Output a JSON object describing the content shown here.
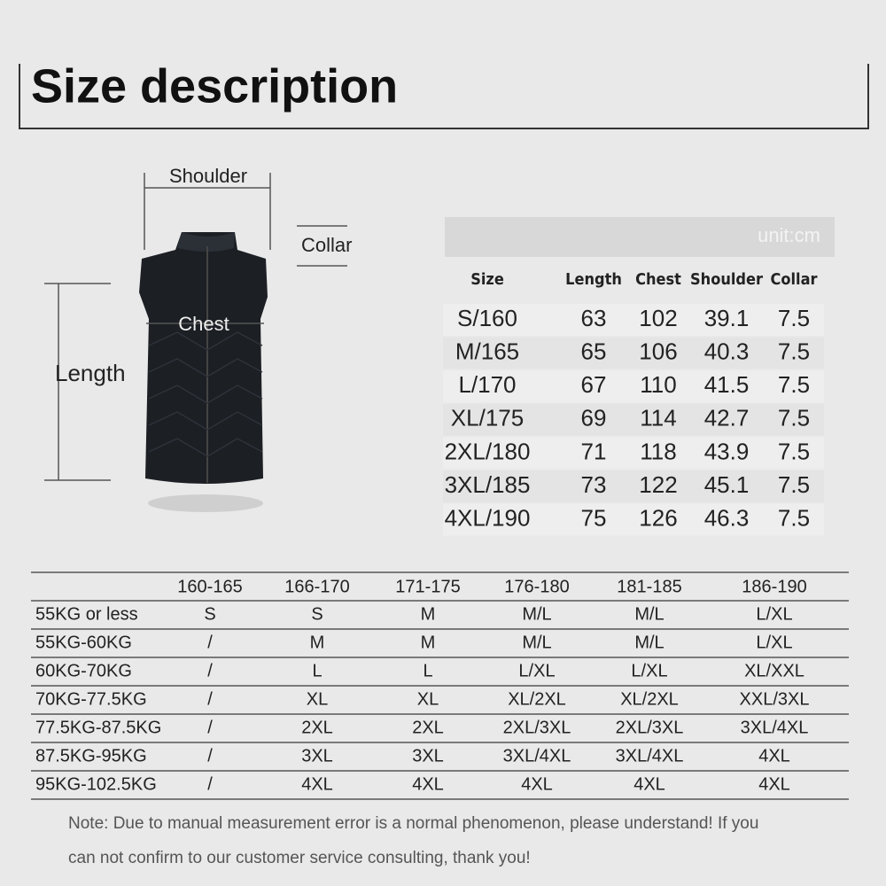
{
  "header": {
    "title": "Size description"
  },
  "diagram": {
    "shoulder": "Shoulder",
    "collar": "Collar",
    "chest": "Chest",
    "length": "Length"
  },
  "size_table": {
    "unit": "unit:cm",
    "columns": [
      "Size",
      "Length",
      "Chest",
      "Shoulder",
      "Collar"
    ],
    "rows": [
      [
        "S/160",
        63,
        102,
        39.1,
        7.5
      ],
      [
        "M/165",
        65,
        106,
        40.3,
        7.5
      ],
      [
        "L/170",
        67,
        110,
        41.5,
        7.5
      ],
      [
        "XL/175",
        69,
        114,
        42.7,
        7.5
      ],
      [
        "2XL/180",
        71,
        118,
        43.9,
        7.5
      ],
      [
        "3XL/185",
        73,
        122,
        45.1,
        7.5
      ],
      [
        "4XL/190",
        75,
        126,
        46.3,
        7.5
      ]
    ]
  },
  "fit_table": {
    "columns": [
      "160-165",
      "166-170",
      "171-175",
      "176-180",
      "181-185",
      "186-190"
    ],
    "rows": [
      {
        "weight": "55KG or less",
        "cells": [
          "S",
          "S",
          "M",
          "M/L",
          "M/L",
          "L/XL"
        ]
      },
      {
        "weight": "55KG-60KG",
        "cells": [
          "/",
          "M",
          "M",
          "M/L",
          "M/L",
          "L/XL"
        ]
      },
      {
        "weight": "60KG-70KG",
        "cells": [
          "/",
          "L",
          "L",
          "L/XL",
          "L/XL",
          "XL/XXL"
        ]
      },
      {
        "weight": "70KG-77.5KG",
        "cells": [
          "/",
          "XL",
          "XL",
          "XL/2XL",
          "XL/2XL",
          "XXL/3XL"
        ]
      },
      {
        "weight": "77.5KG-87.5KG",
        "cells": [
          "/",
          "2XL",
          "2XL",
          "2XL/3XL",
          "2XL/3XL",
          "3XL/4XL"
        ]
      },
      {
        "weight": "87.5KG-95KG",
        "cells": [
          "/",
          "3XL",
          "3XL",
          "3XL/4XL",
          "3XL/4XL",
          "4XL"
        ]
      },
      {
        "weight": "95KG-102.5KG",
        "cells": [
          "/",
          "4XL",
          "4XL",
          "4XL",
          "4XL",
          "4XL"
        ]
      }
    ]
  },
  "note": {
    "lines": [
      "Note: Due to manual measurement error is a normal phenomenon, please understand! If you",
      "can not confirm to our customer service consulting, thank you!"
    ]
  }
}
